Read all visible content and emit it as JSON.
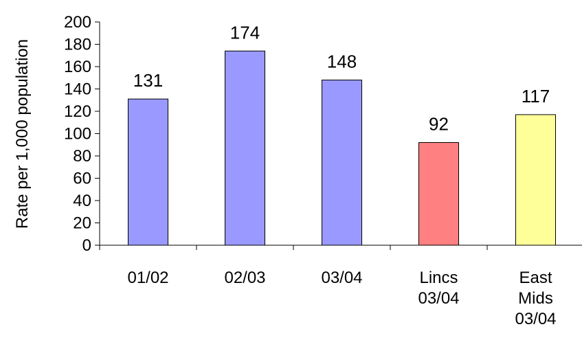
{
  "chart_data": {
    "type": "bar",
    "title": "",
    "xlabel": "",
    "ylabel": "Rate per 1,000 population",
    "ylim": [
      0,
      200
    ],
    "yticks": [
      0,
      20,
      40,
      60,
      80,
      100,
      120,
      140,
      160,
      180,
      200
    ],
    "grid": false,
    "legend": "none",
    "categories": [
      [
        "01/02"
      ],
      [
        "02/03"
      ],
      [
        "03/04"
      ],
      [
        "Lincs",
        "03/04"
      ],
      [
        "East",
        "Mids",
        "03/04"
      ]
    ],
    "values": [
      131,
      174,
      148,
      92,
      117
    ],
    "colors": [
      "#9999ff",
      "#9999ff",
      "#9999ff",
      "#ff8080",
      "#ffff99"
    ]
  }
}
